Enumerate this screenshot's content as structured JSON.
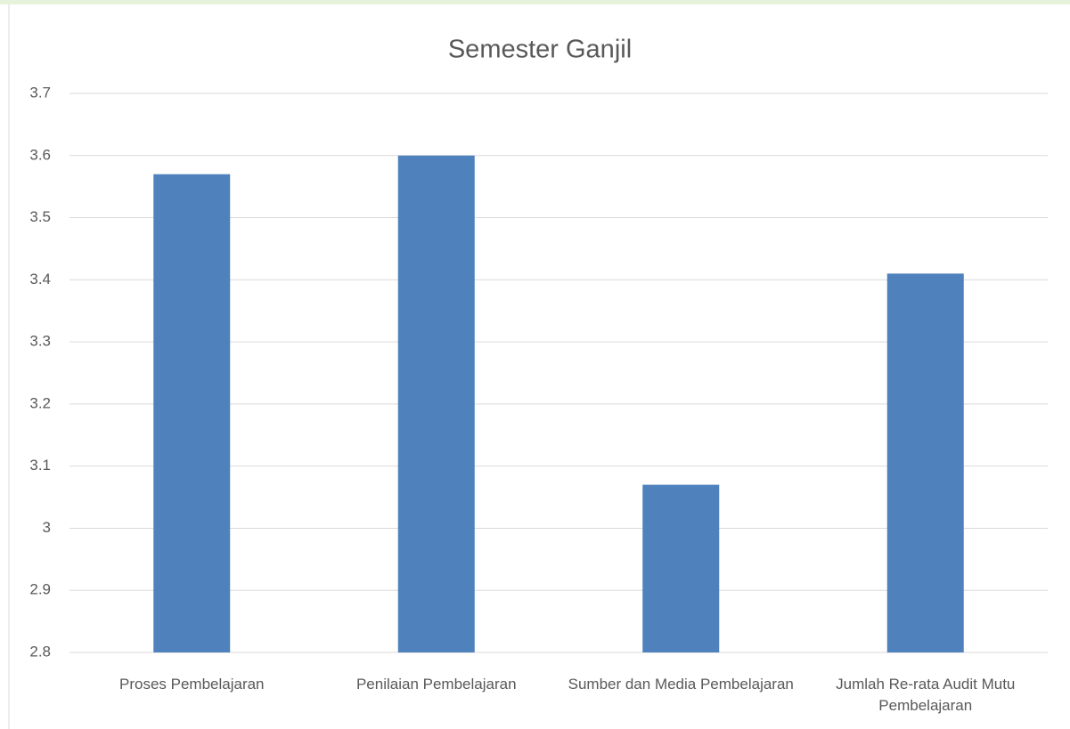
{
  "chart_data": {
    "type": "bar",
    "title": "Semester Ganjil",
    "categories": [
      "Proses Pembelajaran",
      "Penilaian Pembelajaran",
      "Sumber dan Media Pembelajaran",
      "Jumlah Re-rata Audit Mutu Pembelajaran"
    ],
    "values": [
      3.57,
      3.6,
      3.07,
      3.41
    ],
    "color": "#4f81bd",
    "ylim": [
      2.8,
      3.7
    ],
    "yticks": [
      2.8,
      2.9,
      3,
      3.1,
      3.2,
      3.3,
      3.4,
      3.5,
      3.6,
      3.7
    ],
    "grid": true
  }
}
